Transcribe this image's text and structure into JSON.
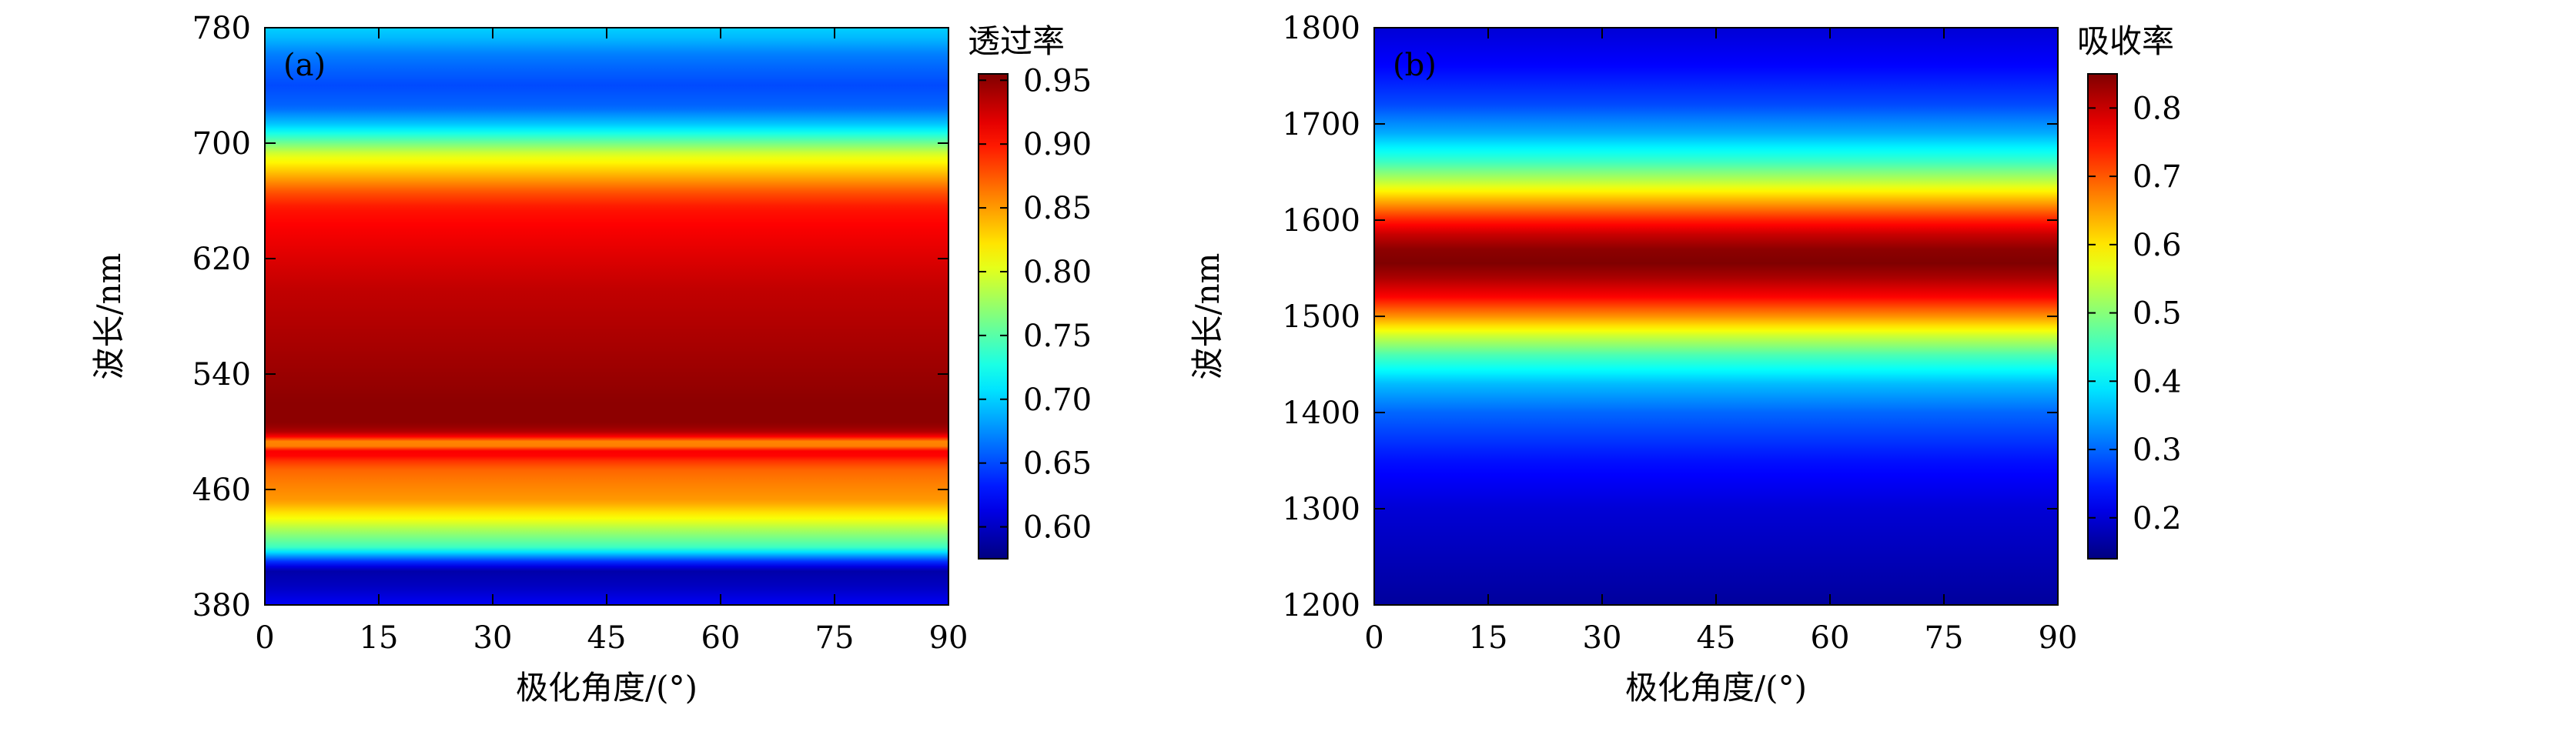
{
  "chart_data": [
    {
      "type": "heatmap",
      "panel_label": "(a)",
      "xlabel": "极化角度/(°)",
      "ylabel": "波长/nm",
      "x_ticks": [
        0,
        15,
        30,
        45,
        60,
        75,
        90
      ],
      "y_ticks": [
        380,
        460,
        540,
        620,
        700,
        780
      ],
      "xlim": [
        0,
        90
      ],
      "ylim": [
        380,
        780
      ],
      "colorbar": {
        "title": "透过率",
        "ticks": [
          "0.60",
          "0.65",
          "0.70",
          "0.75",
          "0.80",
          "0.85",
          "0.90",
          "0.95"
        ],
        "range": [
          0.575,
          0.955
        ]
      },
      "values_constant_across_x": true,
      "profile": {
        "wavelength": [
          380,
          392,
          404,
          410,
          420,
          432,
          440,
          452,
          464,
          474,
          480,
          486,
          489,
          492,
          495,
          498,
          505,
          520,
          540,
          560,
          580,
          600,
          620,
          640,
          655,
          665,
          675,
          685,
          692,
          700,
          712,
          725,
          740,
          752,
          762,
          772,
          780
        ],
        "value": [
          0.62,
          0.6,
          0.59,
          0.64,
          0.74,
          0.78,
          0.81,
          0.85,
          0.86,
          0.87,
          0.89,
          0.92,
          0.87,
          0.84,
          0.88,
          0.93,
          0.95,
          0.95,
          0.945,
          0.94,
          0.935,
          0.93,
          0.92,
          0.91,
          0.9,
          0.88,
          0.85,
          0.82,
          0.8,
          0.76,
          0.7,
          0.66,
          0.65,
          0.66,
          0.67,
          0.69,
          0.7
        ]
      }
    },
    {
      "type": "heatmap",
      "panel_label": "(b)",
      "xlabel": "极化角度/(°)",
      "ylabel": "波长/nm",
      "x_ticks": [
        0,
        15,
        30,
        45,
        60,
        75,
        90
      ],
      "y_ticks": [
        1200,
        1300,
        1400,
        1500,
        1600,
        1700,
        1800
      ],
      "xlim": [
        0,
        90
      ],
      "ylim": [
        1200,
        1800
      ],
      "colorbar": {
        "title": "吸收率",
        "ticks": [
          "0.2",
          "0.3",
          "0.4",
          "0.5",
          "0.6",
          "0.7",
          "0.8"
        ],
        "range": [
          0.14,
          0.85
        ]
      },
      "values_constant_across_x": true,
      "profile": {
        "wavelength": [
          1200,
          1250,
          1300,
          1350,
          1400,
          1430,
          1460,
          1480,
          1500,
          1520,
          1540,
          1555,
          1570,
          1585,
          1600,
          1620,
          1640,
          1660,
          1690,
          1720,
          1760,
          1800
        ],
        "value": [
          0.16,
          0.18,
          0.2,
          0.24,
          0.3,
          0.36,
          0.46,
          0.55,
          0.66,
          0.76,
          0.82,
          0.85,
          0.84,
          0.8,
          0.74,
          0.64,
          0.54,
          0.45,
          0.35,
          0.28,
          0.23,
          0.2
        ]
      }
    }
  ]
}
